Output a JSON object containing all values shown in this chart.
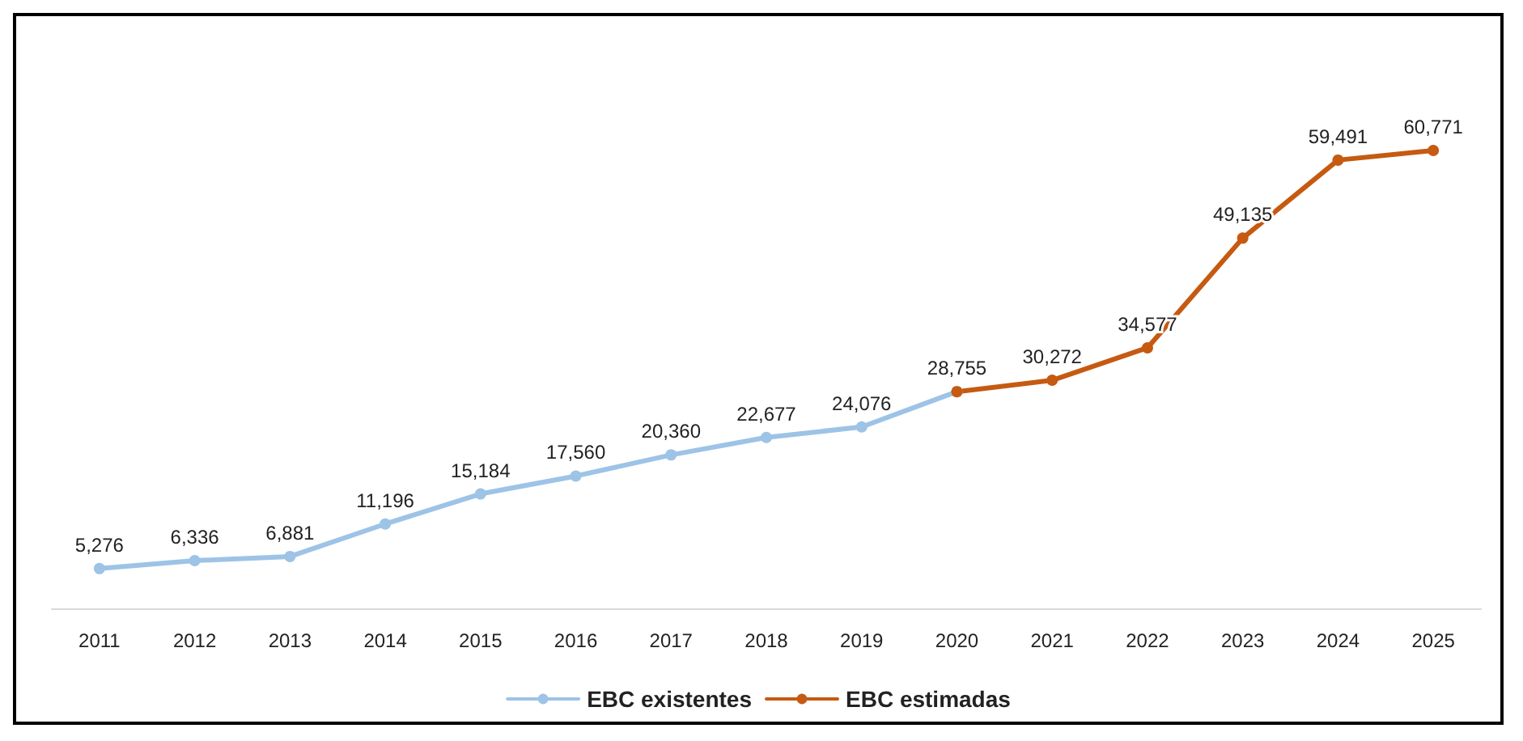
{
  "chart_data": {
    "type": "line",
    "categories": [
      "2011",
      "2012",
      "2013",
      "2014",
      "2015",
      "2016",
      "2017",
      "2018",
      "2019",
      "2020",
      "2021",
      "2022",
      "2023",
      "2024",
      "2025"
    ],
    "series": [
      {
        "name": "EBC existentes",
        "color": "#9dc3e6",
        "values": [
          5276,
          6336,
          6881,
          11196,
          15184,
          17560,
          20360,
          22677,
          24076,
          28755,
          null,
          null,
          null,
          null,
          null
        ],
        "value_labels": [
          "5,276",
          "6,336",
          "6,881",
          "11,196",
          "15,184",
          "17,560",
          "20,360",
          "22,677",
          "24,076",
          "28,755",
          null,
          null,
          null,
          null,
          null
        ]
      },
      {
        "name": "EBC estimadas",
        "color": "#c55a11",
        "values": [
          null,
          null,
          null,
          null,
          null,
          null,
          null,
          null,
          null,
          28755,
          30272,
          34577,
          49135,
          59491,
          60771
        ],
        "value_labels": [
          null,
          null,
          null,
          null,
          null,
          null,
          null,
          null,
          null,
          null,
          "30,272",
          "34,577",
          "49,135",
          "59,491",
          "60,771"
        ]
      }
    ],
    "marker": "circle",
    "legend": "bottom",
    "grid": false,
    "tick_labels": "x"
  }
}
